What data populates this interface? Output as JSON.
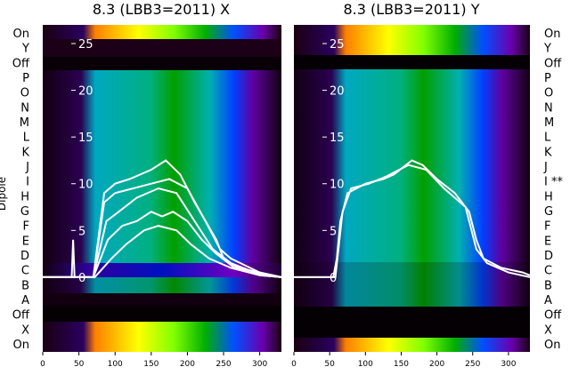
{
  "chart_data": [
    {
      "type": "heatmap",
      "title": "8.3 (LBB3=2011) X",
      "ylabel": "Dipole",
      "xlim": [
        0,
        330
      ],
      "xticks": [
        0,
        50,
        100,
        150,
        200,
        250,
        300
      ],
      "ylim": [
        -8,
        27
      ],
      "yticks": [
        0,
        5,
        10,
        15,
        20,
        25
      ],
      "row_labels": [
        "On",
        "Y",
        "Off",
        "P",
        "O",
        "N",
        "M",
        "L",
        "K",
        "J",
        "I",
        "H",
        "G",
        "F",
        "E",
        "D",
        "C",
        "B",
        "A",
        "Off",
        "X",
        "On"
      ],
      "grid": false,
      "series": [
        {
          "values": [
            [
              0,
              0
            ],
            [
              40,
              0
            ],
            [
              42,
              4
            ],
            [
              44,
              0
            ],
            [
              70,
              0
            ],
            [
              85,
              9
            ],
            [
              100,
              10
            ],
            [
              120,
              10.5
            ],
            [
              150,
              11.5
            ],
            [
              170,
              12.5
            ],
            [
              190,
              11
            ],
            [
              210,
              8
            ],
            [
              240,
              4
            ],
            [
              250,
              2
            ],
            [
              270,
              1
            ],
            [
              300,
              0.5
            ],
            [
              330,
              0
            ]
          ]
        },
        {
          "values": [
            [
              0,
              0
            ],
            [
              70,
              0
            ],
            [
              85,
              8
            ],
            [
              100,
              9
            ],
            [
              125,
              9.5
            ],
            [
              150,
              10
            ],
            [
              175,
              10.5
            ],
            [
              200,
              9.5
            ],
            [
              225,
              6
            ],
            [
              245,
              3
            ],
            [
              260,
              2
            ],
            [
              300,
              0.5
            ],
            [
              330,
              0
            ]
          ]
        },
        {
          "values": [
            [
              0,
              0
            ],
            [
              70,
              0
            ],
            [
              88,
              6
            ],
            [
              105,
              7
            ],
            [
              130,
              8.5
            ],
            [
              160,
              9.5
            ],
            [
              185,
              9
            ],
            [
              210,
              6
            ],
            [
              235,
              3
            ],
            [
              260,
              1.5
            ],
            [
              300,
              0.3
            ],
            [
              330,
              0
            ]
          ]
        },
        {
          "values": [
            [
              0,
              0
            ],
            [
              70,
              0
            ],
            [
              90,
              4
            ],
            [
              110,
              5.5
            ],
            [
              130,
              6
            ],
            [
              150,
              7
            ],
            [
              165,
              6.5
            ],
            [
              180,
              7
            ],
            [
              200,
              6
            ],
            [
              220,
              4
            ],
            [
              240,
              2.5
            ],
            [
              265,
              1
            ],
            [
              300,
              0.2
            ],
            [
              330,
              0
            ]
          ]
        },
        {
          "values": [
            [
              0,
              0
            ],
            [
              72,
              0
            ],
            [
              95,
              2
            ],
            [
              115,
              3.5
            ],
            [
              140,
              5
            ],
            [
              160,
              5.5
            ],
            [
              185,
              5
            ],
            [
              205,
              3.5
            ],
            [
              230,
              2
            ],
            [
              260,
              1
            ],
            [
              300,
              0.2
            ],
            [
              330,
              0
            ]
          ]
        }
      ]
    },
    {
      "type": "heatmap",
      "title": "8.3 (LBB3=2011) Y",
      "xlim": [
        0,
        330
      ],
      "xticks": [
        0,
        50,
        100,
        150,
        200,
        250,
        300
      ],
      "ylim": [
        -8,
        27
      ],
      "yticks": [
        0,
        5,
        10,
        15,
        20,
        25
      ],
      "row_labels": [
        "On",
        "Y",
        "Off",
        "P",
        "O",
        "N",
        "M",
        "L",
        "K",
        "J",
        "I **",
        "H",
        "G",
        "F",
        "E",
        "D",
        "C",
        "B",
        "A",
        "Off",
        "X",
        "On"
      ],
      "grid": false,
      "series": [
        {
          "values": [
            [
              0,
              0
            ],
            [
              55,
              0
            ],
            [
              60,
              2
            ],
            [
              65,
              6
            ],
            [
              75,
              9
            ],
            [
              100,
              10
            ],
            [
              125,
              10.5
            ],
            [
              140,
              11
            ],
            [
              165,
              12.5
            ],
            [
              180,
              12
            ],
            [
              200,
              10.5
            ],
            [
              225,
              9
            ],
            [
              245,
              7
            ],
            [
              255,
              4
            ],
            [
              265,
              2
            ],
            [
              290,
              1
            ],
            [
              320,
              0.5
            ],
            [
              330,
              0.2
            ]
          ]
        },
        {
          "values": [
            [
              0,
              0
            ],
            [
              58,
              0
            ],
            [
              68,
              7
            ],
            [
              80,
              9.5
            ],
            [
              105,
              10
            ],
            [
              130,
              10.8
            ],
            [
              160,
              12
            ],
            [
              185,
              11.5
            ],
            [
              210,
              9.5
            ],
            [
              240,
              7.5
            ],
            [
              255,
              3
            ],
            [
              270,
              1.5
            ],
            [
              300,
              0.5
            ],
            [
              330,
              0
            ]
          ]
        }
      ]
    }
  ]
}
